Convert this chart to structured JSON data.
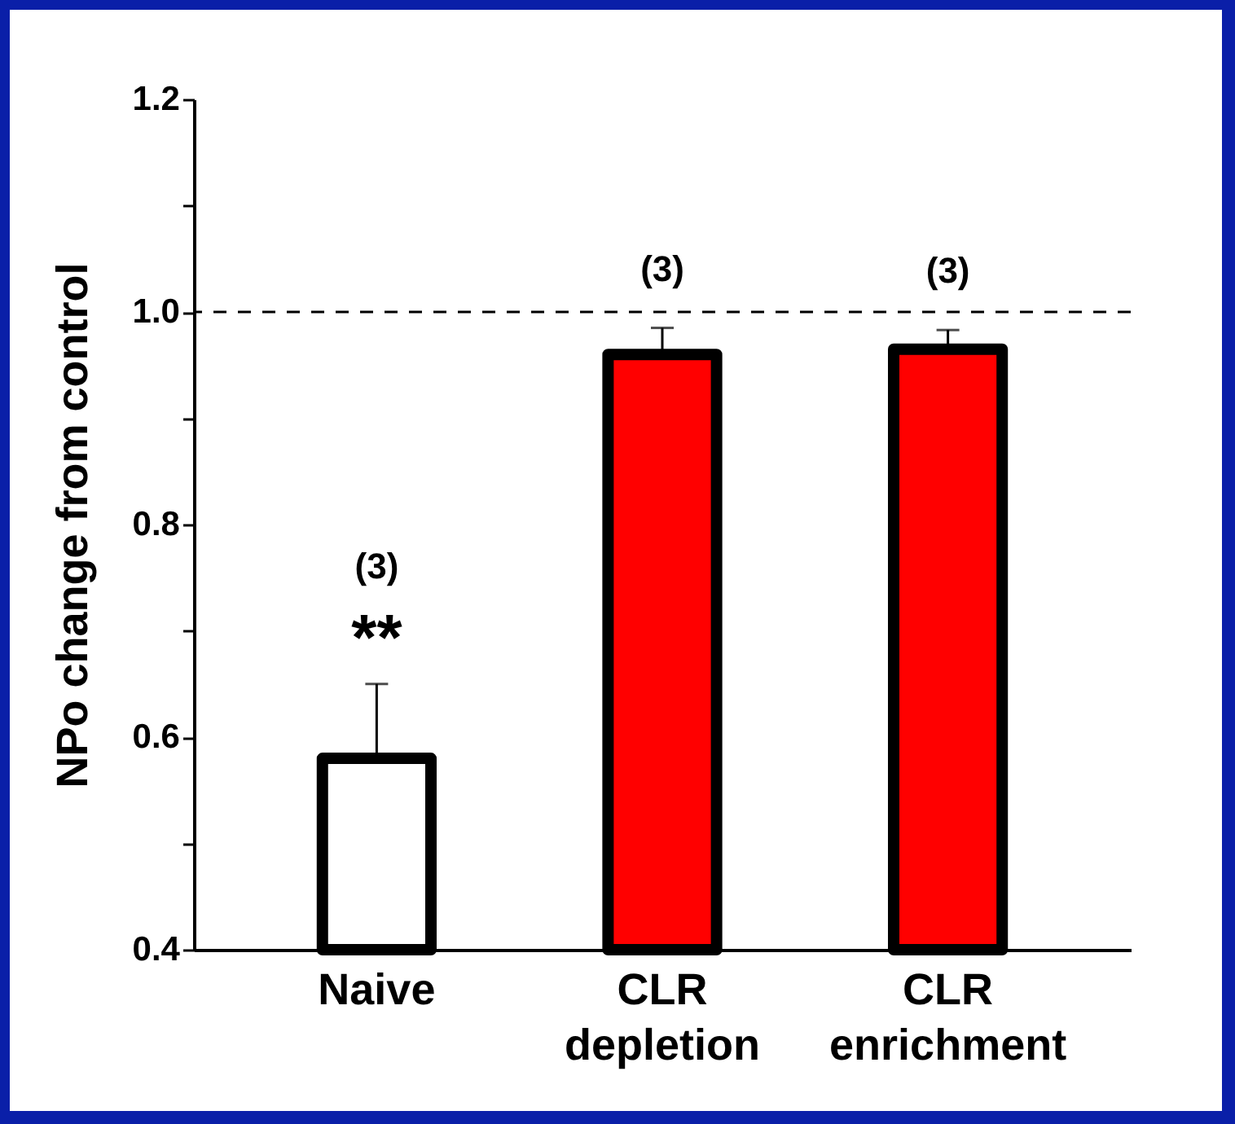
{
  "chart_data": {
    "type": "bar",
    "ylabel": "NPo change from control",
    "categories": [
      "Naive",
      "CLR depletion",
      "CLR enrichment"
    ],
    "values": [
      0.58,
      0.96,
      0.965
    ],
    "colors": [
      "#ffffff",
      "#ff0000",
      "#ff0000"
    ],
    "errors": [
      [
        0.58,
        0.65
      ],
      [
        0.96,
        0.985
      ],
      [
        0.965,
        0.983
      ]
    ],
    "ylim": [
      0.4,
      1.2
    ],
    "yticks": [
      0.4,
      {
        "value": 0.5,
        "label": null
      },
      0.6,
      {
        "value": 0.7,
        "label": null
      },
      0.8,
      {
        "value": 0.9,
        "label": null
      },
      {
        "value": 1,
        "label": "1.0"
      },
      {
        "value": 1.1,
        "label": null
      },
      1.2
    ],
    "ref_lines": [
      {
        "axis": "y",
        "value": 1,
        "line_style": "dashed",
        "color": "#000000"
      }
    ],
    "annotations": [
      {
        "text": "**",
        "x": "Naive",
        "y": 0.65
      },
      {
        "text": "(3)",
        "x": "Naive",
        "y": 0.65
      },
      {
        "text": "(3)",
        "x": "CLR depletion",
        "y": 0.985
      },
      {
        "text": "(3)",
        "x": "CLR enrichment",
        "y": 0.983
      }
    ],
    "grid": false
  }
}
